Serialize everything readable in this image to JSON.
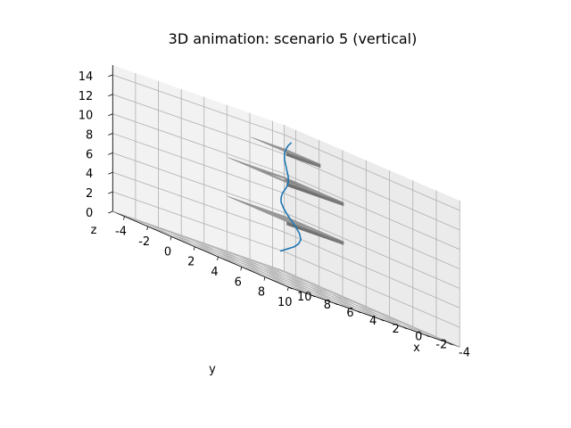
{
  "chart_data": {
    "type": "3d-line",
    "title": "3D animation: scenario 5 (vertical)",
    "xlabel": "x",
    "ylabel": "y",
    "zlabel": "z",
    "xlim": [
      -5,
      10
    ],
    "ylim": [
      -5,
      10
    ],
    "zlim": [
      0,
      15
    ],
    "x_ticks": [
      -4,
      -2,
      0,
      2,
      4,
      6,
      8,
      10
    ],
    "y_ticks": [
      -4,
      -2,
      0,
      2,
      4,
      6,
      8,
      10
    ],
    "z_ticks": [
      0,
      2,
      4,
      6,
      8,
      10,
      12,
      14
    ],
    "grid": true,
    "series": [
      {
        "color": "#1f77b4",
        "x": [
          1.5,
          1.3,
          1.0,
          0.7,
          0.4,
          0.2,
          0.1,
          0.1,
          0.2,
          0.4,
          0.7,
          1.0,
          1.3,
          1.5,
          1.6,
          1.6,
          1.5,
          1.3,
          1.0,
          0.7,
          0.4,
          0.2,
          0.1,
          0.1
        ],
        "y": [
          1.0,
          1.4,
          1.7,
          1.8,
          1.7,
          1.4,
          1.0,
          0.6,
          0.3,
          0.2,
          0.3,
          0.6,
          1.0,
          1.4,
          1.7,
          1.8,
          1.7,
          1.4,
          1.0,
          0.6,
          0.3,
          0.2,
          0.3,
          0.6
        ],
        "z": [
          2.5,
          3.0,
          3.5,
          4.0,
          4.5,
          5.0,
          5.5,
          6.0,
          6.5,
          7.0,
          7.5,
          8.0,
          8.5,
          9.0,
          9.5,
          10.0,
          10.5,
          11.0,
          11.5,
          12.0,
          12.5,
          13.0,
          13.5,
          14.0
        ]
      }
    ],
    "plates": [
      {
        "color": "#999999",
        "z": 6,
        "x": [
          -1.5,
          3.5
        ],
        "y": [
          -1.5,
          3.5
        ],
        "hole": null
      },
      {
        "color": "#999999",
        "z": 10,
        "x": [
          -1.5,
          3.5
        ],
        "y": [
          -1.5,
          3.5
        ],
        "hole": {
          "x": [
            0.0,
            2.0
          ],
          "y": [
            0.0,
            2.0
          ]
        }
      },
      {
        "color": "#999999",
        "z": 13,
        "x": [
          -0.5,
          2.5
        ],
        "y": [
          -0.5,
          2.5
        ],
        "hole": null
      }
    ]
  }
}
